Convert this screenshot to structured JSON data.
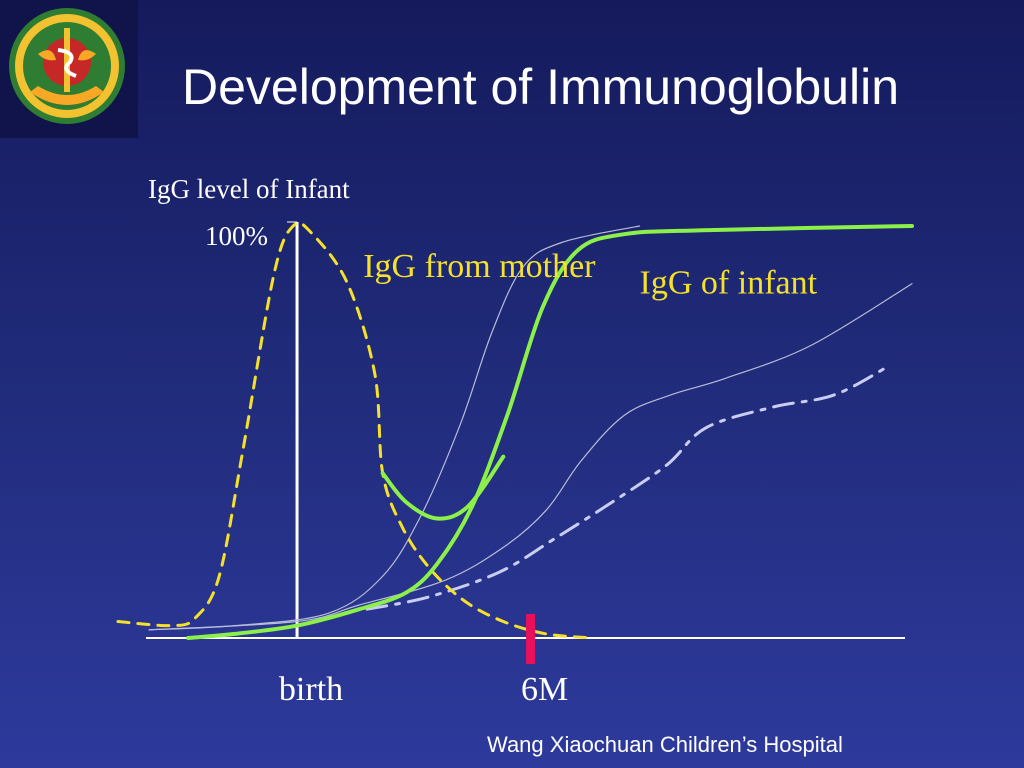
{
  "slide": {
    "title": "Development of Immunoglobulin",
    "footer": "Wang Xiaochuan Children’s Hospital",
    "logo": {
      "name": "hospital-emblem",
      "colors": {
        "ring": "#2e7d32",
        "center": "#c62828",
        "accent": "#f9a825"
      }
    }
  },
  "colors": {
    "mother_curve": "#f5e12a",
    "infant_curve": "#8cf04a",
    "other_curve_1": "#b7bcd8",
    "other_curve_2": "#b7bcd8",
    "dash_dot_curve": "#c9cdf2",
    "axis": "#ffffff",
    "marker": "#e8105a",
    "label_yellow": "#f5e12a",
    "text_white": "#ffffff"
  },
  "chart_data": {
    "type": "line",
    "ylabel": "IgG level of Infant",
    "ytick": "100%",
    "xticks": [
      {
        "label": "birth",
        "x": 0
      },
      {
        "label": "6M",
        "x": 6
      }
    ],
    "xlim": [
      -4.6,
      15.8
    ],
    "ylim": [
      0,
      100
    ],
    "marker": {
      "x": 6,
      "color": "#e8105a"
    },
    "series": [
      {
        "name": "IgG from mother",
        "style": "dashed",
        "color": "#f5e12a",
        "points": [
          [
            -4.6,
            4
          ],
          [
            -3.2,
            3
          ],
          [
            -2.6,
            5
          ],
          [
            -2.0,
            15
          ],
          [
            -1.4,
            45
          ],
          [
            -0.6,
            88
          ],
          [
            -0.1,
            100
          ],
          [
            0.4,
            98
          ],
          [
            1.3,
            86
          ],
          [
            2.0,
            64
          ],
          [
            2.2,
            40
          ],
          [
            2.7,
            27
          ],
          [
            3.4,
            17
          ],
          [
            4.3,
            9
          ],
          [
            5.3,
            4
          ],
          [
            6.4,
            1
          ],
          [
            7.6,
            0
          ]
        ]
      },
      {
        "name": "IgG of infant",
        "style": "solid",
        "color": "#8cf04a",
        "points": [
          [
            -2.8,
            0
          ],
          [
            -1.6,
            1
          ],
          [
            0,
            3
          ],
          [
            1.6,
            7
          ],
          [
            2.8,
            11
          ],
          [
            3.6,
            18
          ],
          [
            4.5,
            32
          ],
          [
            5.4,
            54
          ],
          [
            6.3,
            80
          ],
          [
            7.2,
            94
          ],
          [
            8.4,
            98
          ],
          [
            10.6,
            99
          ],
          [
            15.8,
            100
          ]
        ]
      },
      {
        "name": "",
        "style": "solid",
        "color": "#8cf04a",
        "points": [
          [
            2.2,
            40
          ],
          [
            2.8,
            33
          ],
          [
            3.6,
            29
          ],
          [
            4.4,
            32
          ],
          [
            5.3,
            44
          ]
        ]
      },
      {
        "name": "",
        "style": "thin",
        "color": "#b7bcd8",
        "points": [
          [
            -3.8,
            2
          ],
          [
            -1.6,
            3
          ],
          [
            0.8,
            6
          ],
          [
            2.2,
            15
          ],
          [
            3.2,
            30
          ],
          [
            4.2,
            52
          ],
          [
            5.0,
            74
          ],
          [
            5.8,
            90
          ],
          [
            6.8,
            96
          ],
          [
            8.8,
            100
          ]
        ]
      },
      {
        "name": "",
        "style": "thin",
        "color": "#b7bcd8",
        "points": [
          [
            -3.8,
            2
          ],
          [
            0,
            4
          ],
          [
            1.6,
            8
          ],
          [
            3.8,
            14
          ],
          [
            5.3,
            22
          ],
          [
            6.4,
            31
          ],
          [
            7.3,
            43
          ],
          [
            8.4,
            54
          ],
          [
            9.6,
            59
          ],
          [
            11.0,
            63
          ],
          [
            13.2,
            71
          ],
          [
            15.8,
            86
          ]
        ]
      },
      {
        "name": "",
        "style": "dashdot",
        "color": "#c9cdf2",
        "points": [
          [
            1.8,
            7
          ],
          [
            3.4,
            10
          ],
          [
            5.2,
            16
          ],
          [
            6.6,
            24
          ],
          [
            8.1,
            33
          ],
          [
            9.5,
            42
          ],
          [
            10.5,
            51
          ],
          [
            12.2,
            56
          ],
          [
            13.8,
            59
          ],
          [
            15.2,
            66
          ]
        ]
      }
    ],
    "annotations": [
      {
        "text": "IgG from mother",
        "x": 1.7,
        "y": 90
      },
      {
        "text": "IgG of infant",
        "x": 8.8,
        "y": 86
      }
    ]
  }
}
